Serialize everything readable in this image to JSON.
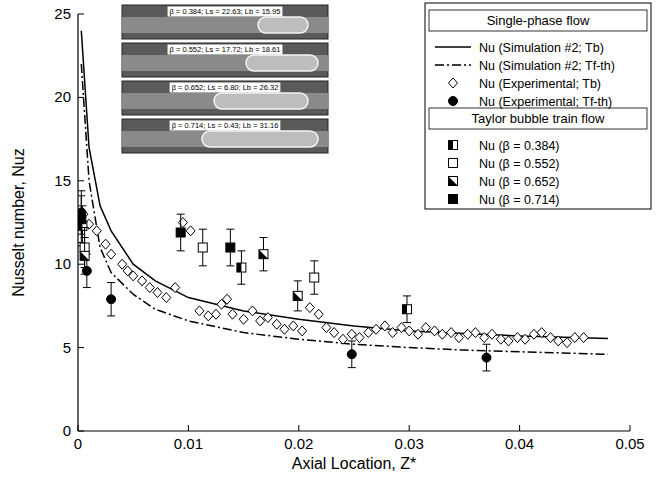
{
  "chart_data": {
    "type": "scatter",
    "x_label": "Axial Location, Z*",
    "y_label": "Nusselt number, Nuz",
    "xlim": [
      0,
      0.05
    ],
    "ylim": [
      0,
      25
    ],
    "xticks": [
      0,
      0.01,
      0.02,
      0.03,
      0.04,
      0.05
    ],
    "yticks": [
      0,
      5,
      10,
      15,
      20,
      25
    ],
    "grid": false,
    "legend": "top-right",
    "inset_labels": [
      "β = 0.384; Ls = 22.63; Lb = 15.95",
      "β = 0.552; Ls = 17.72; Lb = 18.61",
      "β = 0.652; Ls = 6.80; Lb = 26.32",
      "β = 0.714; Ls = 0.43; Lb = 31.16"
    ],
    "groups": [
      {
        "title": "Single-phase flow",
        "series": [
          {
            "name": "Nu (Simulation #2; Tb)",
            "type": "line",
            "line_style": "solid",
            "color": "#000000",
            "x": [
              0.0003,
              0.001,
              0.002,
              0.003,
              0.005,
              0.007,
              0.01,
              0.015,
              0.02,
              0.025,
              0.03,
              0.035,
              0.04,
              0.048
            ],
            "values": [
              24,
              17,
              13.5,
              12,
              10,
              9,
              8,
              7.2,
              6.7,
              6.3,
              6.0,
              5.85,
              5.7,
              5.55
            ]
          },
          {
            "name": "Nu (Simulation #2; Tf-th)",
            "type": "line",
            "line_style": "dashdot",
            "color": "#000000",
            "x": [
              0.0003,
              0.001,
              0.002,
              0.003,
              0.005,
              0.007,
              0.01,
              0.015,
              0.02,
              0.025,
              0.03,
              0.035,
              0.04,
              0.048
            ],
            "values": [
              22,
              15,
              11,
              9.5,
              8.2,
              7.3,
              6.6,
              5.9,
              5.5,
              5.2,
              5.0,
              4.85,
              4.75,
              4.6
            ]
          },
          {
            "name": "Nu (Experimental; Tb)",
            "type": "scatter",
            "marker": "diamond",
            "color": "#000000",
            "x": [
              0.0005,
              0.001,
              0.0017,
              0.0025,
              0.003,
              0.004,
              0.0045,
              0.005,
              0.0058,
              0.0065,
              0.0072,
              0.008,
              0.0088,
              0.0095,
              0.0102,
              0.011,
              0.0118,
              0.0125,
              0.013,
              0.0135,
              0.014,
              0.015,
              0.0158,
              0.0165,
              0.0172,
              0.018,
              0.0187,
              0.0195,
              0.0203,
              0.021,
              0.0218,
              0.0225,
              0.0232,
              0.024,
              0.0248,
              0.0255,
              0.0263,
              0.027,
              0.0278,
              0.0285,
              0.0293,
              0.03,
              0.0308,
              0.0315,
              0.0323,
              0.033,
              0.0338,
              0.0345,
              0.0353,
              0.036,
              0.0368,
              0.0375,
              0.0383,
              0.039,
              0.0398,
              0.0405,
              0.0413,
              0.042,
              0.0428,
              0.0435,
              0.0443,
              0.045,
              0.0458
            ],
            "values": [
              13.0,
              12.4,
              12.0,
              11.2,
              10.6,
              10.0,
              9.6,
              9.3,
              9.0,
              8.6,
              8.3,
              8.0,
              8.6,
              12.5,
              12.0,
              7.2,
              6.9,
              7.0,
              7.6,
              7.9,
              7.0,
              6.7,
              7.2,
              6.6,
              6.8,
              6.4,
              6.1,
              6.3,
              6.0,
              7.4,
              7.0,
              6.2,
              5.9,
              5.5,
              5.8,
              5.6,
              5.9,
              6.1,
              6.3,
              5.9,
              6.2,
              6.0,
              5.8,
              6.2,
              6.0,
              5.8,
              5.9,
              5.6,
              5.8,
              5.9,
              5.6,
              5.8,
              5.5,
              5.4,
              5.6,
              5.5,
              5.8,
              5.9,
              5.6,
              5.4,
              5.3,
              5.6,
              5.6
            ]
          },
          {
            "name": "Nu (Experimental; Tf-th)",
            "type": "scatter",
            "marker": "circle",
            "color": "#000000",
            "x": [
              0.0003,
              0.0008,
              0.003,
              0.0248,
              0.037
            ],
            "values": [
              13.1,
              9.6,
              7.9,
              4.6,
              4.4
            ],
            "errors": [
              1.3,
              1.0,
              1.0,
              0.8,
              0.8
            ]
          }
        ]
      },
      {
        "title": "Taylor bubble train flow",
        "series": [
          {
            "name": "Nu (β = 0.384)",
            "type": "scatter",
            "marker": "half_left",
            "color": "#000000",
            "x": [
              0.0004,
              0.0148,
              0.0298
            ],
            "values": [
              12.3,
              9.8,
              7.3
            ],
            "errors": [
              1.2,
              1.0,
              0.8
            ]
          },
          {
            "name": "Nu (β = 0.552)",
            "type": "scatter",
            "marker": "open",
            "color": "#000000",
            "x": [
              0.0006,
              0.0113,
              0.0214
            ],
            "values": [
              11.0,
              11.0,
              9.2
            ],
            "errors": [
              1.2,
              1.1,
              1.0
            ]
          },
          {
            "name": "Nu (β = 0.652)",
            "type": "scatter",
            "marker": "half_diagonal",
            "color": "#000000",
            "x": [
              0.0006,
              0.0168,
              0.0199
            ],
            "values": [
              10.5,
              10.6,
              8.1
            ],
            "errors": [
              1.1,
              1.0,
              0.9
            ]
          },
          {
            "name": "Nu (β = 0.714)",
            "type": "scatter",
            "marker": "filled",
            "color": "#000000",
            "x": [
              0.0003,
              0.0093,
              0.0138
            ],
            "values": [
              12.7,
              11.9,
              11.0
            ],
            "errors": [
              1.4,
              1.1,
              1.1
            ]
          }
        ]
      }
    ]
  }
}
